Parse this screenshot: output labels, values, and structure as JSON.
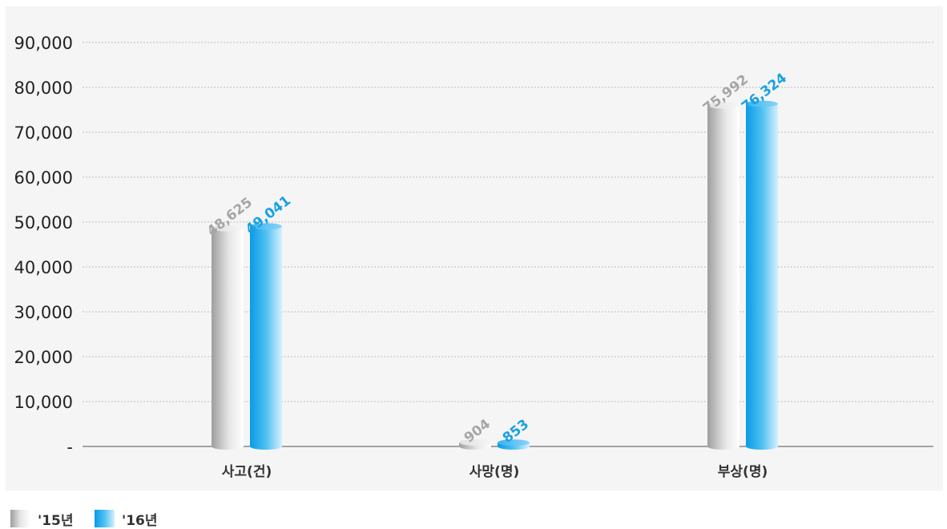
{
  "chart_data": {
    "type": "bar",
    "categories": [
      "사고(건)",
      "사망(명)",
      "부상(명)"
    ],
    "series": [
      {
        "name": "'15년",
        "values": [
          48625,
          904,
          75992
        ],
        "labels": [
          "48,625",
          "904",
          "75,992"
        ],
        "color": "#b3b3b3",
        "label_color": "#a6a6a6"
      },
      {
        "name": "'16년",
        "values": [
          49041,
          853,
          76324
        ],
        "labels": [
          "49,041",
          "853",
          "76,324"
        ],
        "color": "#1aa7e8",
        "label_color": "#1aa1e2"
      }
    ],
    "ylim": [
      0,
      90000
    ],
    "yticks": [
      0,
      10000,
      20000,
      30000,
      40000,
      50000,
      60000,
      70000,
      80000,
      90000
    ],
    "ytick_labels": [
      "-",
      "10,000",
      "20,000",
      "30,000",
      "40,000",
      "50,000",
      "60,000",
      "70,000",
      "80,000",
      "90,000"
    ],
    "grid": true,
    "legend_position": "bottom-left",
    "colors": {
      "panel": "#f5f5f5",
      "grid": "#bdbdbd",
      "axis": "#888888"
    }
  }
}
